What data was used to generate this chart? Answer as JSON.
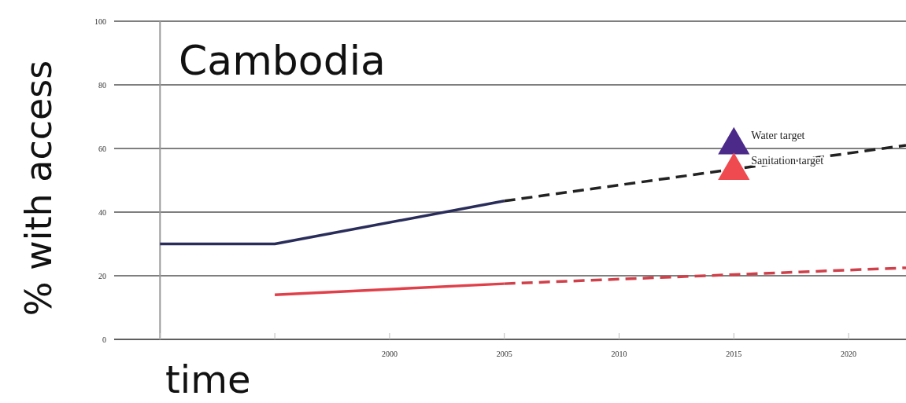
{
  "chart_data": {
    "type": "line",
    "title": "Cambodia",
    "xlabel": "time",
    "ylabel": "% with access",
    "xlim": [
      1988,
      2022.5
    ],
    "xticks": [
      {
        "value": 1990,
        "label": null
      },
      {
        "value": 1995,
        "label": null
      },
      2000,
      2005,
      2010,
      2015,
      2020
    ],
    "ylim": [
      0,
      100
    ],
    "yticks": [
      0,
      20,
      40,
      60,
      80,
      100
    ],
    "grid": "y",
    "ref_lines": [
      {
        "axis": "x",
        "value": 1990,
        "color": "#999999"
      }
    ],
    "series": [
      {
        "color": "#2a2d5a",
        "x": [
          1990,
          1995,
          2005
        ],
        "values": [
          30,
          30,
          43.5
        ],
        "line_style": "solid"
      },
      {
        "color": "#222222",
        "x": [
          2005,
          2022.5
        ],
        "values": [
          43.5,
          61
        ],
        "line_style": "dashed"
      },
      {
        "color": "#e0404a",
        "x": [
          1995,
          2005
        ],
        "values": [
          14,
          17.5
        ],
        "line_style": "solid"
      },
      {
        "color": "#d0404a",
        "x": [
          2005,
          2022.5
        ],
        "values": [
          17.5,
          22.5
        ],
        "line_style": "dashed"
      },
      {
        "type": "scatter",
        "name": "Water target",
        "color": "#4b2a8a",
        "x": [
          2015
        ],
        "values": [
          61
        ],
        "marker": "triangle"
      },
      {
        "type": "scatter",
        "name": "Sanitation target",
        "color": "#ee4a50",
        "x": [
          2015
        ],
        "values": [
          53
        ],
        "marker": "triangle"
      }
    ]
  }
}
